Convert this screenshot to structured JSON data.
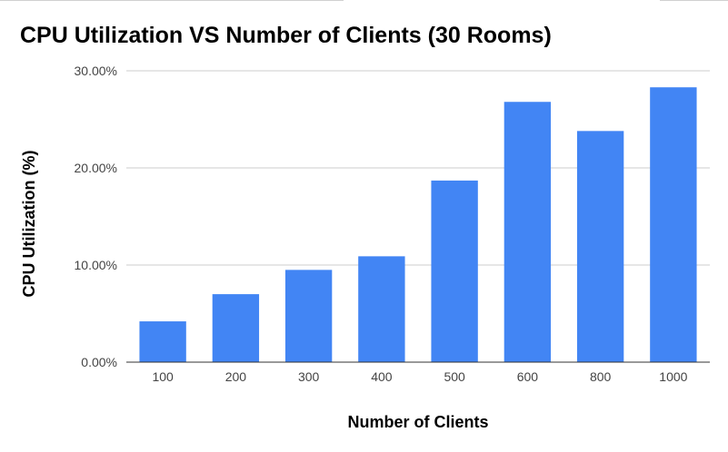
{
  "chart_data": {
    "type": "bar",
    "title": "CPU Utilization VS Number of Clients (30 Rooms)",
    "xlabel": "Number of Clients",
    "ylabel": "CPU Utilization (%)",
    "categories": [
      "100",
      "200",
      "300",
      "400",
      "500",
      "600",
      "800",
      "1000"
    ],
    "values": [
      4.2,
      7.0,
      9.5,
      10.9,
      18.7,
      26.8,
      23.8,
      28.3
    ],
    "ylim": [
      0,
      30
    ],
    "yticks": [
      0,
      10,
      20,
      30
    ],
    "ytick_labels": [
      "0.00%",
      "10.00%",
      "20.00%",
      "30.00%"
    ],
    "grid": true,
    "legend": "none",
    "bar_color": "#4285f4"
  }
}
